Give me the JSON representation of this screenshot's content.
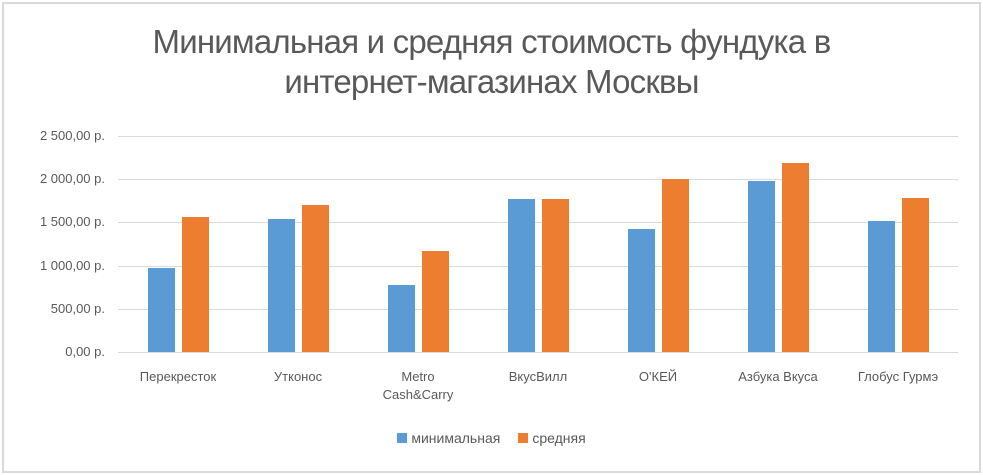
{
  "chart_data": {
    "type": "bar",
    "title": "Минимальная и средняя стоимость фундука в интернет-магазинах Москвы",
    "title_lines": [
      "Минимальная и средняя стоимость фундука в",
      "интернет-магазинах Москвы"
    ],
    "categories": [
      "Перекресток",
      "Утконос",
      "Metro Cash&Carry",
      "ВкусВилл",
      "О'КЕЙ",
      "Азбука Вкуса",
      "Глобус Гурмэ"
    ],
    "category_label_lines": [
      [
        "Перекресток"
      ],
      [
        "Утконос"
      ],
      [
        "Metro",
        "Cash&Carry"
      ],
      [
        "ВкусВилл"
      ],
      [
        "О'КЕЙ"
      ],
      [
        "Азбука Вкуса"
      ],
      [
        "Глобус Гурмэ"
      ]
    ],
    "series": [
      {
        "name": "минимальная",
        "color": "#5b9bd5",
        "values": [
          975,
          1540,
          775,
          1770,
          1425,
          1980,
          1515
        ]
      },
      {
        "name": "средняя",
        "color": "#ed7d31",
        "values": [
          1565,
          1700,
          1170,
          1770,
          2000,
          2190,
          1780
        ]
      }
    ],
    "xlabel": "",
    "ylabel": "",
    "ylim": [
      0,
      2500
    ],
    "yticks": [
      0,
      500,
      1000,
      1500,
      2000,
      2500
    ],
    "ytick_labels": [
      "0,00 р.",
      "500,00 р.",
      "1 000,00 р.",
      "1 500,00 р.",
      "2 000,00 р.",
      "2 500,00 р."
    ],
    "grid": true,
    "legend_position": "bottom"
  }
}
